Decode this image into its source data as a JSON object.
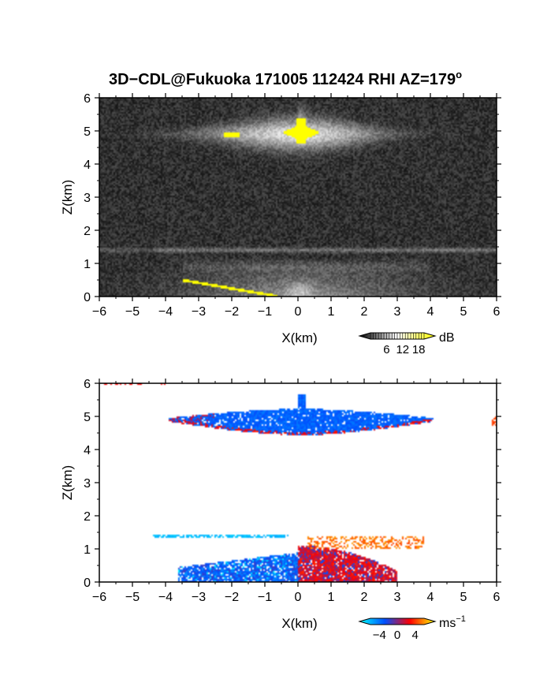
{
  "figure": {
    "title_main": "3D−CDL@Fukuoka 171005 112424 RHI AZ=179",
    "title_degree": "o"
  },
  "chart_data": [
    {
      "type": "heatmap",
      "title": "3D−CDL@Fukuoka 171005 112424 RHI AZ=179°",
      "quantity": "backscatter intensity",
      "xlabel": "X(km)",
      "ylabel": "Z(km)",
      "xlim": [
        -6,
        6
      ],
      "ylim": [
        0,
        6
      ],
      "xticks": [
        "−6",
        "−5",
        "−4",
        "−3",
        "−2",
        "−1",
        "0",
        "1",
        "2",
        "3",
        "4",
        "5",
        "6"
      ],
      "yticks": [
        "0",
        "1",
        "2",
        "3",
        "4",
        "5",
        "6"
      ],
      "colorbar": {
        "unit": "dB",
        "ticks": [
          "6",
          "12",
          "18"
        ],
        "range": [
          0,
          20
        ],
        "colors": [
          "#000000",
          "#ffffff",
          "#ffff00"
        ]
      },
      "background": "noise",
      "features": [
        {
          "kind": "cloud-layer",
          "x": [
            -4.3,
            3.7
          ],
          "z": [
            4.6,
            5.2
          ],
          "peak_x": 0.1,
          "peak_z": 4.9,
          "value": "bright"
        },
        {
          "kind": "saturated-core",
          "x": [
            -0.6,
            0.8
          ],
          "z": [
            4.6,
            5.4
          ],
          "value": 18
        },
        {
          "kind": "saturated-spot",
          "x": [
            -2.25,
            -1.75
          ],
          "z": [
            4.8,
            4.95
          ],
          "value": 18
        },
        {
          "kind": "thin-layer",
          "x": [
            -6,
            6
          ],
          "z": 1.4,
          "value": "medium"
        },
        {
          "kind": "boundary-layer",
          "x": [
            -4,
            4
          ],
          "z": [
            0,
            1.2
          ],
          "value": "medium"
        },
        {
          "kind": "ground-clutter",
          "x": [
            -3.5,
            -0.6
          ],
          "z": [
            0,
            0.5
          ],
          "value": 18
        }
      ]
    },
    {
      "type": "heatmap",
      "quantity": "Doppler velocity",
      "xlabel": "X(km)",
      "ylabel": "Z(km)",
      "xlim": [
        -6,
        6
      ],
      "ylim": [
        0,
        6
      ],
      "xticks": [
        "−6",
        "−5",
        "−4",
        "−3",
        "−2",
        "−1",
        "0",
        "1",
        "2",
        "3",
        "4",
        "5",
        "6"
      ],
      "yticks": [
        "0",
        "1",
        "2",
        "3",
        "4",
        "5",
        "6"
      ],
      "colorbar": {
        "unit": "ms",
        "unit_exp": "−1",
        "ticks": [
          "−4",
          "0",
          "4"
        ],
        "range": [
          -6,
          6
        ],
        "colors": [
          "#00ffff",
          "#0050ff",
          "#ff0000",
          "#ffff00"
        ]
      },
      "features": [
        {
          "kind": "cloud-layer",
          "x": [
            -3.9,
            4.1
          ],
          "z": [
            4.4,
            5.4
          ],
          "velocity": -3,
          "edge_velocity": 1
        },
        {
          "kind": "thin-layer",
          "x": [
            -4.4,
            -0.3
          ],
          "z": 1.4,
          "velocity": -5
        },
        {
          "kind": "boundary-layer-negative",
          "x": [
            -3.6,
            0.1
          ],
          "z": [
            0,
            0.9
          ],
          "velocity": -3
        },
        {
          "kind": "boundary-layer-positive",
          "x": [
            0,
            3.0
          ],
          "z": [
            0,
            1.1
          ],
          "velocity": 1
        },
        {
          "kind": "upper-band-positive",
          "x": [
            0.3,
            3.8
          ],
          "z": [
            1.0,
            1.4
          ],
          "velocity": 4
        },
        {
          "kind": "edge-echo",
          "x": [
            -6,
            -4
          ],
          "z": 6,
          "velocity": 2
        },
        {
          "kind": "edge-echo",
          "x": [
            5.85,
            6
          ],
          "z": [
            4.7,
            5.0
          ],
          "velocity": 3
        }
      ]
    }
  ]
}
